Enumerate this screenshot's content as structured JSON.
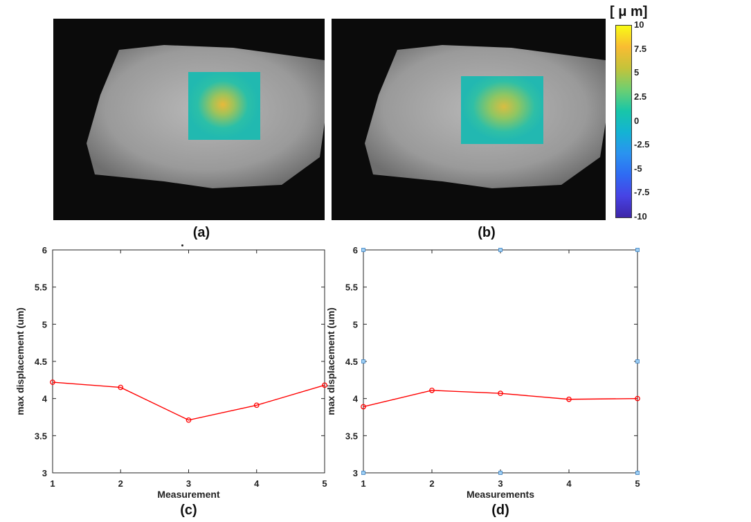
{
  "images": [
    {
      "panel_label": "(a)"
    },
    {
      "panel_label": "(b)"
    }
  ],
  "colorbar": {
    "unit_label": "[ μ m]",
    "ticks": [
      "10",
      "7.5",
      "5",
      "2.5",
      "0",
      "-2.5",
      "-5",
      "-7.5",
      "-10"
    ],
    "range": [
      -10,
      10
    ],
    "colors": [
      "#3e26a8",
      "#4743e5",
      "#2f6bf3",
      "#2a93f0",
      "#14b3d3",
      "#18c6a8",
      "#6ecf71",
      "#c4c33a",
      "#f9bc32",
      "#f9fb15"
    ]
  },
  "chart_data": [
    {
      "type": "line",
      "panel_label": "(c)",
      "title": "",
      "xlabel": "Measurement",
      "ylabel": "max displacement (um)",
      "x": [
        1,
        2,
        3,
        4,
        5
      ],
      "series": [
        {
          "name": "max displacement",
          "values": [
            4.22,
            4.15,
            3.71,
            3.91,
            4.18
          ],
          "color": "#ff0000"
        }
      ],
      "xlim": [
        1,
        5
      ],
      "ylim": [
        3,
        6
      ],
      "xticks": [
        "1",
        "2",
        "3",
        "4",
        "5"
      ],
      "yticks": [
        "3",
        "3.5",
        "4",
        "4.5",
        "5",
        "5.5",
        "6"
      ],
      "grid": false,
      "handles": false
    },
    {
      "type": "line",
      "panel_label": "(d)",
      "title": "",
      "xlabel": "Measurements",
      "ylabel": "max displacement (um)",
      "x": [
        1,
        2,
        3,
        4,
        5
      ],
      "series": [
        {
          "name": "max displacement",
          "values": [
            3.89,
            4.11,
            4.07,
            3.99,
            4.0
          ],
          "color": "#ff0000"
        }
      ],
      "xlim": [
        1,
        5
      ],
      "ylim": [
        3,
        6
      ],
      "xticks": [
        "1",
        "2",
        "3",
        "4",
        "5"
      ],
      "yticks": [
        "3",
        "3.5",
        "4",
        "4.5",
        "5",
        "5.5",
        "6"
      ],
      "grid": false,
      "handles": true
    }
  ]
}
